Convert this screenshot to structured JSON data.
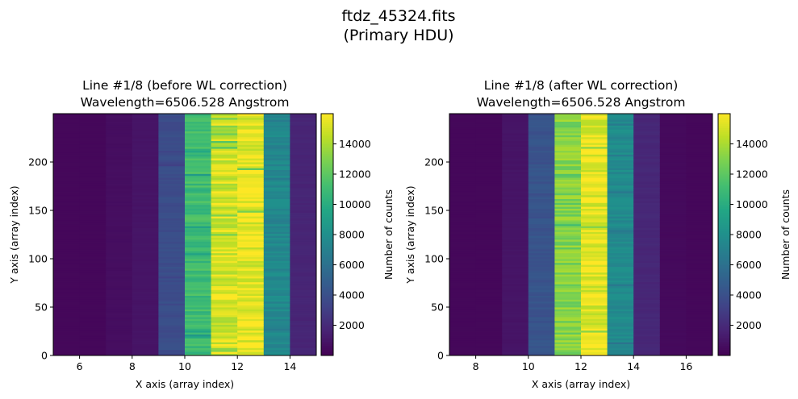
{
  "figure": {
    "title_line1": "ftdz_45324.fits",
    "title_line2": "(Primary HDU)"
  },
  "colormap": "viridis",
  "chart_data": [
    {
      "type": "heatmap",
      "title_line1": "Line #1/8 (before WL correction)",
      "title_line2": "Wavelength=6506.528 Angstrom",
      "xlabel": "X axis (array index)",
      "ylabel": "Y axis (array index)",
      "xlim": [
        5,
        15
      ],
      "ylim": [
        0,
        250
      ],
      "xticks": [
        6,
        8,
        10,
        12,
        14
      ],
      "yticks": [
        0,
        50,
        100,
        150,
        200
      ],
      "columns": [
        5,
        6,
        7,
        8,
        9,
        10,
        11,
        12,
        13,
        14
      ],
      "column_mean_counts": [
        300,
        300,
        600,
        900,
        3800,
        11000,
        15000,
        15500,
        7500,
        1700
      ],
      "colorbar": {
        "label": "Number of counts",
        "vmin": 0,
        "vmax": 16000,
        "ticks": [
          2000,
          4000,
          6000,
          8000,
          10000,
          12000,
          14000
        ]
      }
    },
    {
      "type": "heatmap",
      "title_line1": "Line #1/8 (after WL correction)",
      "title_line2": "Wavelength=6506.528 Angstrom",
      "xlabel": "X axis (array index)",
      "ylabel": "Y axis (array index)",
      "xlim": [
        7,
        17
      ],
      "ylim": [
        0,
        250
      ],
      "xticks": [
        8,
        10,
        12,
        14,
        16
      ],
      "yticks": [
        0,
        50,
        100,
        150,
        200
      ],
      "columns": [
        7,
        8,
        9,
        10,
        11,
        12,
        13,
        14,
        15,
        16
      ],
      "column_mean_counts": [
        300,
        300,
        900,
        4200,
        13000,
        15500,
        7600,
        1800,
        400,
        300
      ],
      "colorbar": {
        "label": "Number of counts",
        "vmin": 0,
        "vmax": 16000,
        "ticks": [
          2000,
          4000,
          6000,
          8000,
          10000,
          12000,
          14000
        ]
      }
    }
  ]
}
